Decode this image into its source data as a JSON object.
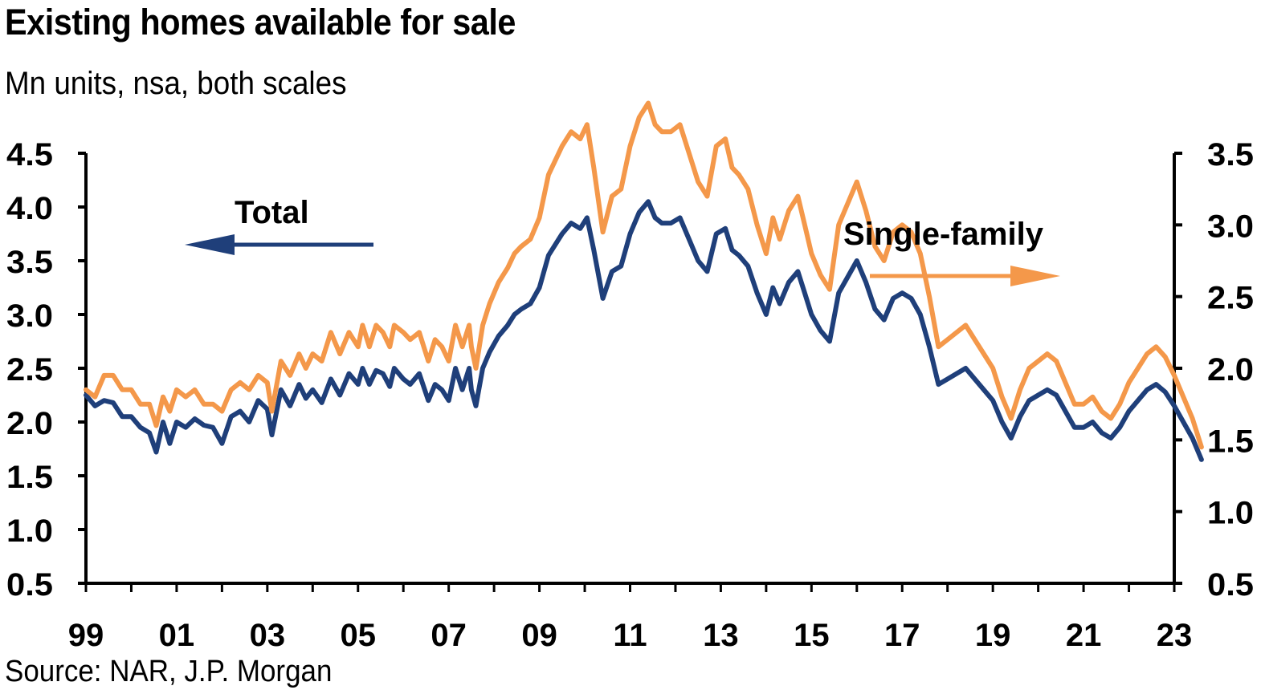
{
  "header": {
    "title": "Existing homes available for sale",
    "subtitle": "Mn units, nsa, both scales"
  },
  "footer": {
    "source": "Source: NAR, J.P. Morgan"
  },
  "colors": {
    "total": "#1f3f7a",
    "single_family": "#f4984a",
    "axis": "#000000"
  },
  "chart_data": {
    "type": "line",
    "x_ticks": [
      "99",
      "01",
      "03",
      "05",
      "07",
      "09",
      "11",
      "13",
      "15",
      "17",
      "19",
      "21",
      "23"
    ],
    "x_range": [
      1999,
      2023
    ],
    "left_axis": {
      "ticks": [
        "4.5",
        "4.0",
        "3.5",
        "3.0",
        "2.5",
        "2.0",
        "1.5",
        "1.0",
        "0.5"
      ],
      "ylim": [
        0.5,
        4.5
      ]
    },
    "right_axis": {
      "ticks": [
        "3.5",
        "3.0",
        "2.5",
        "2.0",
        "1.5",
        "1.0",
        "0.5"
      ],
      "ylim": [
        0.5,
        3.5
      ]
    },
    "annotations": {
      "total": "Total",
      "single_family": "Single-family"
    },
    "series": [
      {
        "name": "Total",
        "axis": "left",
        "points": [
          [
            1999.0,
            2.25
          ],
          [
            1999.2,
            2.15
          ],
          [
            1999.4,
            2.2
          ],
          [
            1999.6,
            2.18
          ],
          [
            1999.8,
            2.05
          ],
          [
            2000.0,
            2.05
          ],
          [
            2000.2,
            1.95
          ],
          [
            2000.4,
            1.9
          ],
          [
            2000.55,
            1.72
          ],
          [
            2000.7,
            2.0
          ],
          [
            2000.85,
            1.8
          ],
          [
            2001.0,
            2.0
          ],
          [
            2001.2,
            1.95
          ],
          [
            2001.4,
            2.03
          ],
          [
            2001.6,
            1.97
          ],
          [
            2001.8,
            1.95
          ],
          [
            2002.0,
            1.8
          ],
          [
            2002.2,
            2.05
          ],
          [
            2002.4,
            2.1
          ],
          [
            2002.6,
            2.0
          ],
          [
            2002.8,
            2.2
          ],
          [
            2003.0,
            2.12
          ],
          [
            2003.1,
            1.88
          ],
          [
            2003.3,
            2.3
          ],
          [
            2003.5,
            2.15
          ],
          [
            2003.7,
            2.35
          ],
          [
            2003.85,
            2.22
          ],
          [
            2004.0,
            2.3
          ],
          [
            2004.2,
            2.18
          ],
          [
            2004.4,
            2.4
          ],
          [
            2004.6,
            2.25
          ],
          [
            2004.8,
            2.45
          ],
          [
            2005.0,
            2.35
          ],
          [
            2005.1,
            2.5
          ],
          [
            2005.25,
            2.35
          ],
          [
            2005.4,
            2.48
          ],
          [
            2005.55,
            2.45
          ],
          [
            2005.7,
            2.33
          ],
          [
            2005.8,
            2.5
          ],
          [
            2006.0,
            2.4
          ],
          [
            2006.15,
            2.35
          ],
          [
            2006.35,
            2.45
          ],
          [
            2006.55,
            2.2
          ],
          [
            2006.7,
            2.35
          ],
          [
            2006.85,
            2.3
          ],
          [
            2007.0,
            2.2
          ],
          [
            2007.15,
            2.5
          ],
          [
            2007.3,
            2.3
          ],
          [
            2007.45,
            2.5
          ],
          [
            2007.5,
            2.3
          ],
          [
            2007.6,
            2.15
          ],
          [
            2007.75,
            2.5
          ],
          [
            2007.9,
            2.65
          ],
          [
            2008.1,
            2.8
          ],
          [
            2008.3,
            2.9
          ],
          [
            2008.45,
            3.0
          ],
          [
            2008.6,
            3.05
          ],
          [
            2008.8,
            3.1
          ],
          [
            2009.0,
            3.25
          ],
          [
            2009.2,
            3.55
          ],
          [
            2009.5,
            3.75
          ],
          [
            2009.7,
            3.85
          ],
          [
            2009.9,
            3.8
          ],
          [
            2010.05,
            3.9
          ],
          [
            2010.2,
            3.6
          ],
          [
            2010.4,
            3.15
          ],
          [
            2010.6,
            3.4
          ],
          [
            2010.8,
            3.45
          ],
          [
            2011.0,
            3.75
          ],
          [
            2011.2,
            3.95
          ],
          [
            2011.4,
            4.05
          ],
          [
            2011.55,
            3.9
          ],
          [
            2011.7,
            3.85
          ],
          [
            2011.9,
            3.85
          ],
          [
            2012.1,
            3.9
          ],
          [
            2012.3,
            3.7
          ],
          [
            2012.5,
            3.5
          ],
          [
            2012.7,
            3.4
          ],
          [
            2012.9,
            3.75
          ],
          [
            2013.1,
            3.8
          ],
          [
            2013.25,
            3.6
          ],
          [
            2013.4,
            3.55
          ],
          [
            2013.6,
            3.45
          ],
          [
            2013.8,
            3.2
          ],
          [
            2014.0,
            3.0
          ],
          [
            2014.15,
            3.25
          ],
          [
            2014.3,
            3.1
          ],
          [
            2014.5,
            3.3
          ],
          [
            2014.7,
            3.4
          ],
          [
            2014.85,
            3.2
          ],
          [
            2015.0,
            3.0
          ],
          [
            2015.2,
            2.85
          ],
          [
            2015.4,
            2.75
          ],
          [
            2015.6,
            3.2
          ],
          [
            2015.8,
            3.35
          ],
          [
            2016.0,
            3.5
          ],
          [
            2016.2,
            3.3
          ],
          [
            2016.4,
            3.05
          ],
          [
            2016.6,
            2.95
          ],
          [
            2016.8,
            3.15
          ],
          [
            2017.0,
            3.2
          ],
          [
            2017.2,
            3.15
          ],
          [
            2017.4,
            3.0
          ],
          [
            2017.6,
            2.7
          ],
          [
            2017.8,
            2.35
          ],
          [
            2018.0,
            2.4
          ],
          [
            2018.2,
            2.45
          ],
          [
            2018.4,
            2.5
          ],
          [
            2018.6,
            2.4
          ],
          [
            2018.8,
            2.3
          ],
          [
            2019.0,
            2.2
          ],
          [
            2019.2,
            2.0
          ],
          [
            2019.4,
            1.85
          ],
          [
            2019.6,
            2.05
          ],
          [
            2019.8,
            2.2
          ],
          [
            2020.0,
            2.25
          ],
          [
            2020.2,
            2.3
          ],
          [
            2020.4,
            2.25
          ],
          [
            2020.6,
            2.1
          ],
          [
            2020.8,
            1.95
          ],
          [
            2021.0,
            1.95
          ],
          [
            2021.2,
            2.0
          ],
          [
            2021.4,
            1.9
          ],
          [
            2021.6,
            1.85
          ],
          [
            2021.8,
            1.95
          ],
          [
            2022.0,
            2.1
          ],
          [
            2022.2,
            2.2
          ],
          [
            2022.4,
            2.3
          ],
          [
            2022.6,
            2.35
          ],
          [
            2022.8,
            2.28
          ],
          [
            2023.0,
            2.15
          ],
          [
            2023.2,
            2.0
          ],
          [
            2023.4,
            1.85
          ],
          [
            2023.6,
            1.65
          ]
        ]
      },
      {
        "name": "Single-family",
        "axis": "right",
        "points": [
          [
            1999.0,
            1.85
          ],
          [
            1999.2,
            1.8
          ],
          [
            1999.4,
            1.95
          ],
          [
            1999.6,
            1.95
          ],
          [
            1999.8,
            1.85
          ],
          [
            2000.0,
            1.85
          ],
          [
            2000.2,
            1.75
          ],
          [
            2000.4,
            1.75
          ],
          [
            2000.55,
            1.6
          ],
          [
            2000.7,
            1.8
          ],
          [
            2000.85,
            1.7
          ],
          [
            2001.0,
            1.85
          ],
          [
            2001.2,
            1.8
          ],
          [
            2001.4,
            1.85
          ],
          [
            2001.6,
            1.75
          ],
          [
            2001.8,
            1.75
          ],
          [
            2002.0,
            1.7
          ],
          [
            2002.2,
            1.85
          ],
          [
            2002.4,
            1.9
          ],
          [
            2002.6,
            1.85
          ],
          [
            2002.8,
            1.95
          ],
          [
            2003.0,
            1.9
          ],
          [
            2003.1,
            1.7
          ],
          [
            2003.3,
            2.05
          ],
          [
            2003.5,
            1.95
          ],
          [
            2003.7,
            2.1
          ],
          [
            2003.85,
            2.0
          ],
          [
            2004.0,
            2.1
          ],
          [
            2004.2,
            2.05
          ],
          [
            2004.4,
            2.25
          ],
          [
            2004.6,
            2.1
          ],
          [
            2004.8,
            2.25
          ],
          [
            2005.0,
            2.15
          ],
          [
            2005.1,
            2.3
          ],
          [
            2005.25,
            2.15
          ],
          [
            2005.4,
            2.3
          ],
          [
            2005.55,
            2.25
          ],
          [
            2005.7,
            2.15
          ],
          [
            2005.8,
            2.3
          ],
          [
            2006.0,
            2.25
          ],
          [
            2006.15,
            2.2
          ],
          [
            2006.35,
            2.25
          ],
          [
            2006.55,
            2.05
          ],
          [
            2006.7,
            2.2
          ],
          [
            2006.85,
            2.15
          ],
          [
            2007.0,
            2.05
          ],
          [
            2007.15,
            2.3
          ],
          [
            2007.3,
            2.15
          ],
          [
            2007.45,
            2.3
          ],
          [
            2007.5,
            2.15
          ],
          [
            2007.6,
            2.0
          ],
          [
            2007.75,
            2.3
          ],
          [
            2007.9,
            2.45
          ],
          [
            2008.1,
            2.6
          ],
          [
            2008.3,
            2.7
          ],
          [
            2008.45,
            2.8
          ],
          [
            2008.6,
            2.85
          ],
          [
            2008.8,
            2.9
          ],
          [
            2009.0,
            3.05
          ],
          [
            2009.2,
            3.35
          ],
          [
            2009.5,
            3.55
          ],
          [
            2009.7,
            3.65
          ],
          [
            2009.9,
            3.6
          ],
          [
            2010.05,
            3.7
          ],
          [
            2010.2,
            3.4
          ],
          [
            2010.4,
            2.95
          ],
          [
            2010.6,
            3.2
          ],
          [
            2010.8,
            3.25
          ],
          [
            2011.0,
            3.55
          ],
          [
            2011.2,
            3.75
          ],
          [
            2011.4,
            3.85
          ],
          [
            2011.55,
            3.7
          ],
          [
            2011.7,
            3.65
          ],
          [
            2011.9,
            3.65
          ],
          [
            2012.1,
            3.7
          ],
          [
            2012.3,
            3.5
          ],
          [
            2012.5,
            3.3
          ],
          [
            2012.7,
            3.2
          ],
          [
            2012.9,
            3.55
          ],
          [
            2013.1,
            3.6
          ],
          [
            2013.25,
            3.4
          ],
          [
            2013.4,
            3.35
          ],
          [
            2013.6,
            3.25
          ],
          [
            2013.8,
            3.0
          ],
          [
            2014.0,
            2.8
          ],
          [
            2014.15,
            3.05
          ],
          [
            2014.3,
            2.9
          ],
          [
            2014.5,
            3.1
          ],
          [
            2014.7,
            3.2
          ],
          [
            2014.85,
            3.0
          ],
          [
            2015.0,
            2.8
          ],
          [
            2015.2,
            2.65
          ],
          [
            2015.4,
            2.55
          ],
          [
            2015.6,
            3.0
          ],
          [
            2015.8,
            3.15
          ],
          [
            2016.0,
            3.3
          ],
          [
            2016.2,
            3.1
          ],
          [
            2016.4,
            2.85
          ],
          [
            2016.6,
            2.75
          ],
          [
            2016.8,
            2.95
          ],
          [
            2017.0,
            3.0
          ],
          [
            2017.2,
            2.95
          ],
          [
            2017.4,
            2.8
          ],
          [
            2017.6,
            2.5
          ],
          [
            2017.8,
            2.15
          ],
          [
            2018.0,
            2.2
          ],
          [
            2018.2,
            2.25
          ],
          [
            2018.4,
            2.3
          ],
          [
            2018.6,
            2.2
          ],
          [
            2018.8,
            2.1
          ],
          [
            2019.0,
            2.0
          ],
          [
            2019.2,
            1.8
          ],
          [
            2019.4,
            1.65
          ],
          [
            2019.6,
            1.85
          ],
          [
            2019.8,
            2.0
          ],
          [
            2020.0,
            2.05
          ],
          [
            2020.2,
            2.1
          ],
          [
            2020.4,
            2.05
          ],
          [
            2020.6,
            1.9
          ],
          [
            2020.8,
            1.75
          ],
          [
            2021.0,
            1.75
          ],
          [
            2021.2,
            1.8
          ],
          [
            2021.4,
            1.7
          ],
          [
            2021.6,
            1.65
          ],
          [
            2021.8,
            1.75
          ],
          [
            2022.0,
            1.9
          ],
          [
            2022.2,
            2.0
          ],
          [
            2022.4,
            2.1
          ],
          [
            2022.6,
            2.15
          ],
          [
            2022.8,
            2.08
          ],
          [
            2023.0,
            1.95
          ],
          [
            2023.2,
            1.8
          ],
          [
            2023.4,
            1.65
          ],
          [
            2023.6,
            1.45
          ]
        ]
      }
    ]
  }
}
